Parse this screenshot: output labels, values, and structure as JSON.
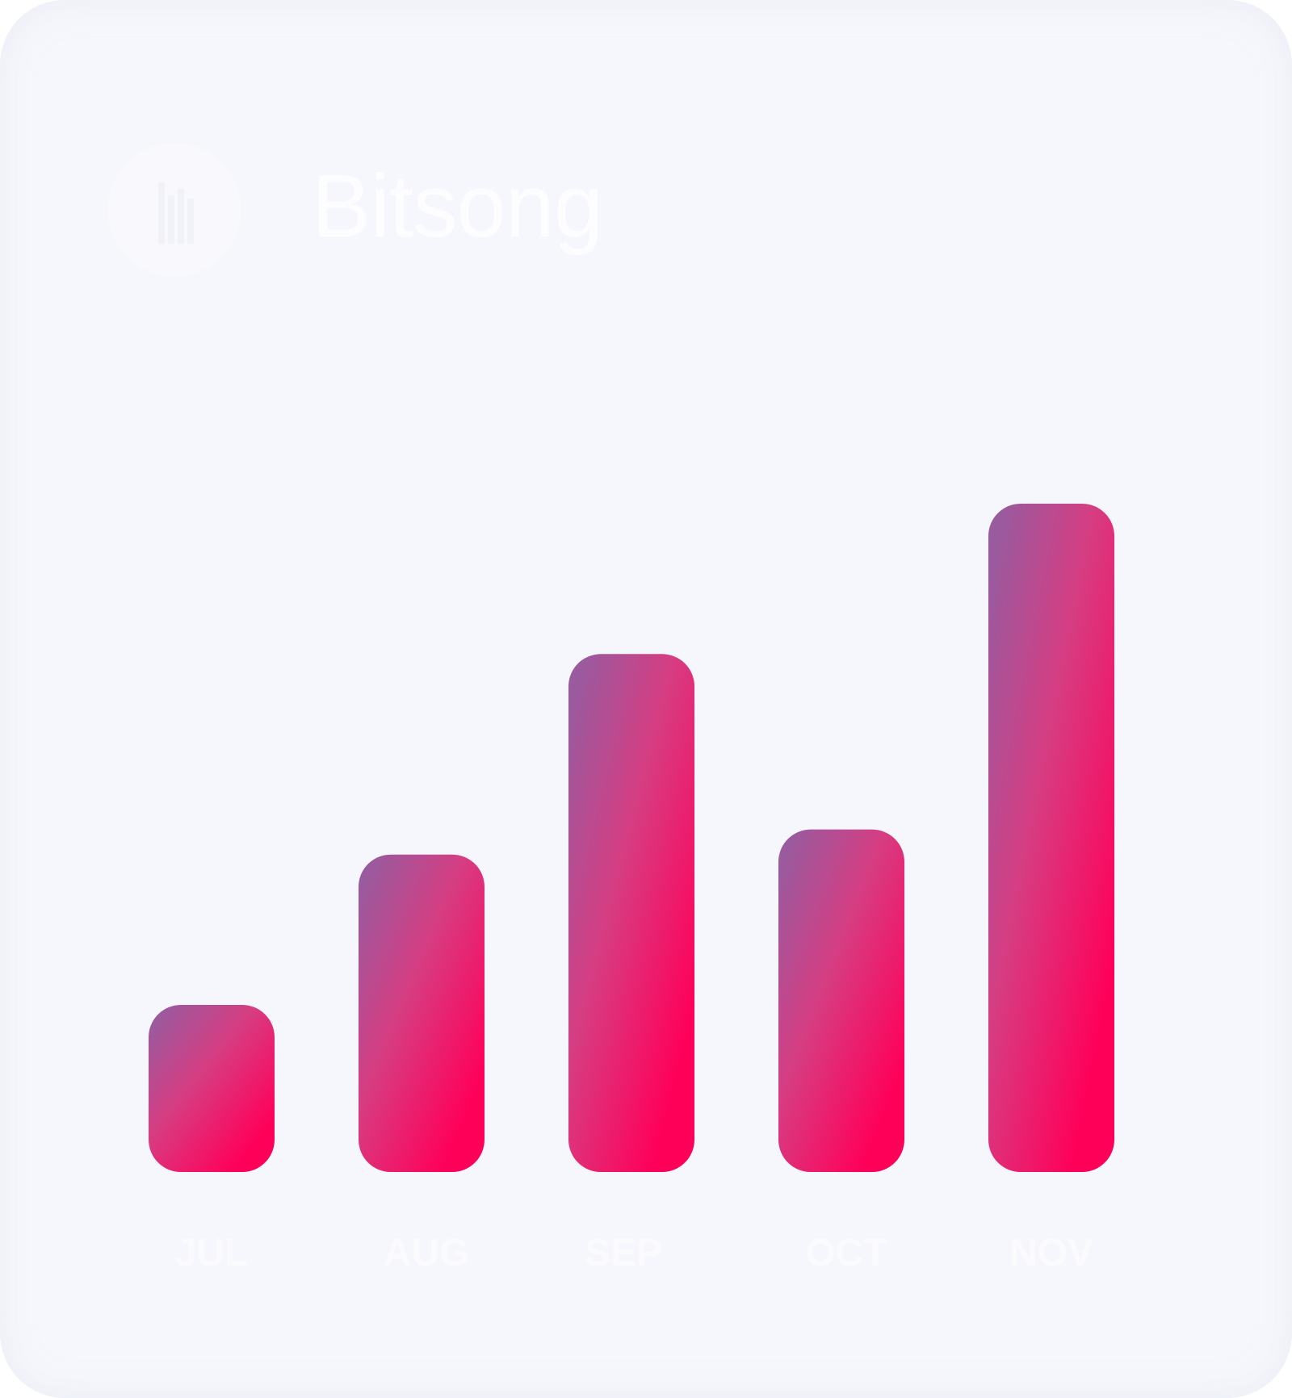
{
  "header": {
    "title": "Bitsong",
    "logo_icon": "bitsong-bars-icon"
  },
  "colors": {
    "card_background": "#f6f7fc",
    "bar_gradient_top": "#9a5a9e",
    "bar_gradient_bottom": "#ff0059",
    "label_color": "#fbfbfe"
  },
  "chart_data": {
    "type": "bar",
    "categories": [
      "JUL",
      "AUG",
      "SEP",
      "OCT",
      "NOV"
    ],
    "values": [
      2,
      3.8,
      6.2,
      4.1,
      8
    ],
    "ylim": [
      0,
      8
    ],
    "grid": false,
    "legend": "none"
  }
}
